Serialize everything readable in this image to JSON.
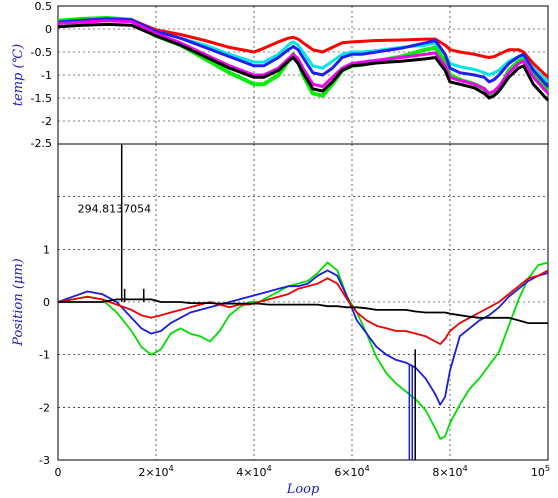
{
  "chart_data": [
    {
      "type": "line",
      "ylabel": "temp (℃)",
      "xlim": [
        0,
        100000
      ],
      "ylim": [
        -2.5,
        0.5
      ],
      "yticks": [
        "0.5",
        "0",
        "-0.5",
        "-1",
        "-1.5",
        "-2"
      ],
      "bottom_label": "-2.5",
      "grid": true,
      "x": [
        0,
        5000,
        10000,
        15000,
        20000,
        25000,
        30000,
        35000,
        40000,
        42000,
        45000,
        47000,
        48000,
        49000,
        50000,
        52000,
        54000,
        56000,
        58000,
        60000,
        62000,
        65000,
        70000,
        75000,
        77000,
        79000,
        80000,
        82000,
        85000,
        87000,
        88000,
        89000,
        90000,
        92000,
        94000,
        95000,
        97000,
        100000
      ],
      "series": [
        {
          "color": "#00ee00",
          "values": [
            0.18,
            0.22,
            0.24,
            0.2,
            -0.15,
            -0.35,
            -0.65,
            -0.95,
            -1.2,
            -1.2,
            -1.0,
            -0.7,
            -0.55,
            -0.7,
            -1.0,
            -1.4,
            -1.45,
            -1.2,
            -0.9,
            -0.8,
            -0.78,
            -0.7,
            -0.6,
            -0.45,
            -0.4,
            -0.7,
            -1.0,
            -1.1,
            -1.2,
            -1.3,
            -1.45,
            -1.4,
            -1.3,
            -0.9,
            -0.7,
            -0.65,
            -1.0,
            -1.35
          ]
        },
        {
          "color": "#ff0000",
          "values": [
            0.14,
            0.18,
            0.2,
            0.2,
            -0.02,
            -0.12,
            -0.25,
            -0.4,
            -0.5,
            -0.42,
            -0.28,
            -0.2,
            -0.18,
            -0.22,
            -0.3,
            -0.45,
            -0.5,
            -0.4,
            -0.3,
            -0.28,
            -0.27,
            -0.25,
            -0.24,
            -0.22,
            -0.22,
            -0.35,
            -0.45,
            -0.5,
            -0.55,
            -0.6,
            -0.62,
            -0.6,
            -0.55,
            -0.45,
            -0.45,
            -0.5,
            -0.75,
            -1.05
          ]
        },
        {
          "color": "#00e5e5",
          "values": [
            0.14,
            0.17,
            0.2,
            0.18,
            -0.05,
            -0.2,
            -0.35,
            -0.55,
            -0.72,
            -0.72,
            -0.55,
            -0.35,
            -0.28,
            -0.35,
            -0.5,
            -0.8,
            -0.85,
            -0.7,
            -0.55,
            -0.5,
            -0.5,
            -0.47,
            -0.4,
            -0.35,
            -0.3,
            -0.55,
            -0.75,
            -0.82,
            -0.88,
            -0.95,
            -1.0,
            -0.95,
            -0.9,
            -0.7,
            -0.6,
            -0.6,
            -0.85,
            -1.15
          ]
        },
        {
          "color": "#2020ee",
          "values": [
            0.15,
            0.19,
            0.22,
            0.2,
            -0.05,
            -0.2,
            -0.4,
            -0.6,
            -0.8,
            -0.8,
            -0.62,
            -0.45,
            -0.38,
            -0.45,
            -0.62,
            -0.95,
            -1.0,
            -0.85,
            -0.62,
            -0.55,
            -0.55,
            -0.5,
            -0.42,
            -0.3,
            -0.25,
            -0.55,
            -0.85,
            -0.95,
            -1.0,
            -1.05,
            -1.15,
            -1.1,
            -1.0,
            -0.75,
            -0.6,
            -0.55,
            -0.9,
            -1.25
          ]
        },
        {
          "color": "#ee00ee",
          "values": [
            0.12,
            0.15,
            0.18,
            0.16,
            -0.1,
            -0.3,
            -0.55,
            -0.8,
            -1.0,
            -1.0,
            -0.85,
            -0.65,
            -0.55,
            -0.65,
            -0.85,
            -1.2,
            -1.25,
            -1.05,
            -0.85,
            -0.75,
            -0.72,
            -0.68,
            -0.62,
            -0.55,
            -0.52,
            -0.8,
            -1.05,
            -1.12,
            -1.2,
            -1.3,
            -1.4,
            -1.35,
            -1.25,
            -0.95,
            -0.75,
            -0.7,
            -1.05,
            -1.4
          ]
        },
        {
          "color": "#000000",
          "values": [
            0.05,
            0.08,
            0.1,
            0.08,
            -0.15,
            -0.35,
            -0.6,
            -0.85,
            -1.05,
            -1.05,
            -0.9,
            -0.7,
            -0.62,
            -0.75,
            -0.95,
            -1.3,
            -1.35,
            -1.15,
            -0.9,
            -0.8,
            -0.78,
            -0.74,
            -0.7,
            -0.65,
            -0.62,
            -0.9,
            -1.15,
            -1.2,
            -1.28,
            -1.4,
            -1.5,
            -1.45,
            -1.35,
            -1.05,
            -0.85,
            -0.8,
            -1.2,
            -1.55
          ]
        }
      ]
    },
    {
      "type": "line",
      "ylabel": "Position (μm)",
      "xlabel": "Loop",
      "xlim": [
        0,
        100000
      ],
      "ylim": [
        -3,
        3
      ],
      "xticks": [
        {
          "value": 0,
          "mantissa": "0",
          "exp": ""
        },
        {
          "value": 20000,
          "mantissa": "2×10",
          "exp": "4"
        },
        {
          "value": 40000,
          "mantissa": "4×10",
          "exp": "4"
        },
        {
          "value": 60000,
          "mantissa": "6×10",
          "exp": "4"
        },
        {
          "value": 80000,
          "mantissa": "8×10",
          "exp": "4"
        },
        {
          "value": 100000,
          "mantissa": "10",
          "exp": "5"
        }
      ],
      "yticks": [
        "1",
        "0",
        "-1",
        "-2",
        "-3"
      ],
      "annotation": {
        "text": "294.8137054",
        "x": 4000,
        "y": 1.7
      },
      "grid": true,
      "x": [
        0,
        3000,
        6000,
        9000,
        12000,
        15000,
        17000,
        19000,
        21000,
        23000,
        25000,
        27000,
        29000,
        31000,
        33000,
        35000,
        37000,
        39000,
        41000,
        43000,
        45000,
        47000,
        49000,
        51000,
        53000,
        55000,
        57000,
        59000,
        61000,
        63000,
        65000,
        67000,
        69000,
        71000,
        73000,
        75000,
        77000,
        78000,
        79000,
        80000,
        82000,
        84000,
        86000,
        88000,
        90000,
        92000,
        94000,
        96000,
        98000,
        100000
      ],
      "series": [
        {
          "color": "#00dd00",
          "values": [
            0.0,
            0.05,
            0.1,
            0.05,
            -0.2,
            -0.55,
            -0.85,
            -1.0,
            -0.9,
            -0.6,
            -0.5,
            -0.6,
            -0.65,
            -0.75,
            -0.55,
            -0.25,
            -0.1,
            0.0,
            0.0,
            0.1,
            0.2,
            0.3,
            0.35,
            0.4,
            0.55,
            0.75,
            0.6,
            0.1,
            -0.2,
            -0.6,
            -1.05,
            -1.35,
            -1.55,
            -1.7,
            -1.85,
            -2.05,
            -2.4,
            -2.6,
            -2.55,
            -2.3,
            -1.95,
            -1.65,
            -1.45,
            -1.2,
            -0.95,
            -0.45,
            0.05,
            0.45,
            0.7,
            0.75
          ]
        },
        {
          "color": "#1c1cdd",
          "values": [
            0.0,
            0.1,
            0.2,
            0.15,
            0.0,
            -0.3,
            -0.5,
            -0.6,
            -0.55,
            -0.4,
            -0.3,
            -0.2,
            -0.15,
            -0.1,
            -0.05,
            0.0,
            0.05,
            0.1,
            0.15,
            0.2,
            0.25,
            0.3,
            0.3,
            0.35,
            0.5,
            0.6,
            0.5,
            0.1,
            -0.35,
            -0.6,
            -0.85,
            -1.0,
            -1.1,
            -1.15,
            -1.25,
            -1.45,
            -1.75,
            -1.95,
            -1.8,
            -1.3,
            -0.65,
            -0.5,
            -0.35,
            -0.25,
            -0.1,
            0.1,
            0.25,
            0.4,
            0.5,
            0.55
          ]
        },
        {
          "color": "#ee0000",
          "values": [
            0.0,
            0.05,
            0.1,
            0.05,
            -0.05,
            -0.15,
            -0.25,
            -0.3,
            -0.25,
            -0.2,
            -0.15,
            -0.1,
            -0.05,
            0.0,
            -0.05,
            -0.1,
            -0.05,
            -0.05,
            0.0,
            0.05,
            0.1,
            0.15,
            0.25,
            0.3,
            0.35,
            0.45,
            0.35,
            0.05,
            -0.2,
            -0.35,
            -0.45,
            -0.5,
            -0.55,
            -0.55,
            -0.6,
            -0.65,
            -0.75,
            -0.8,
            -0.7,
            -0.55,
            -0.4,
            -0.3,
            -0.2,
            -0.1,
            0.0,
            0.15,
            0.3,
            0.45,
            0.5,
            0.6
          ]
        },
        {
          "color": "#000000",
          "values": [
            0.0,
            0.0,
            0.0,
            0.0,
            0.05,
            0.05,
            0.05,
            0.05,
            0.0,
            0.0,
            0.0,
            -0.02,
            -0.02,
            -0.02,
            -0.03,
            -0.03,
            -0.03,
            -0.03,
            -0.03,
            -0.05,
            -0.05,
            -0.05,
            -0.05,
            -0.05,
            -0.05,
            -0.08,
            -0.08,
            -0.1,
            -0.1,
            -0.12,
            -0.15,
            -0.15,
            -0.15,
            -0.15,
            -0.18,
            -0.2,
            -0.2,
            -0.2,
            -0.2,
            -0.22,
            -0.25,
            -0.28,
            -0.3,
            -0.3,
            -0.3,
            -0.3,
            -0.35,
            -0.4,
            -0.4,
            -0.4
          ]
        }
      ],
      "spikes": [
        {
          "color": "#000000",
          "x": 13000,
          "y0": 0.0,
          "y1": 3.0
        },
        {
          "color": "#000000",
          "x": 13600,
          "y0": 0.0,
          "y1": 0.25
        },
        {
          "color": "#000000",
          "x": 17500,
          "y0": 0.0,
          "y1": 0.25
        },
        {
          "color": "#1c1cdd",
          "x": 71700,
          "y0": -1.2,
          "y1": -3.0
        },
        {
          "color": "#1c1cdd",
          "x": 72300,
          "y0": -1.2,
          "y1": -3.0
        },
        {
          "color": "#000000",
          "x": 72900,
          "y0": -0.9,
          "y1": -3.0
        }
      ]
    }
  ]
}
